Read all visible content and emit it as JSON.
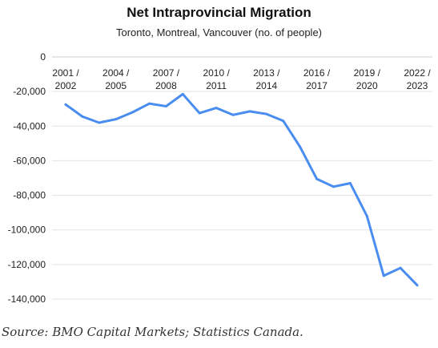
{
  "chart_data": {
    "type": "line",
    "title": "Net Intraprovincial Migration",
    "subtitle": "Toronto, Montreal, Vancouver (no. of people)",
    "xlabel": "",
    "ylabel": "",
    "ylim": [
      -140000,
      0
    ],
    "yticks": [
      "0",
      "-20,000",
      "-40,000",
      "-60,000",
      "-80,000",
      "-100,000",
      "-120,000",
      "-140,000"
    ],
    "x_tick_labels": [
      {
        "line1": "2001 /",
        "line2": "2002",
        "index": 0
      },
      {
        "line1": "2004 /",
        "line2": "2005",
        "index": 3
      },
      {
        "line1": "2007 /",
        "line2": "2008",
        "index": 6
      },
      {
        "line1": "2010 /",
        "line2": "2011",
        "index": 9
      },
      {
        "line1": "2013 /",
        "line2": "2014",
        "index": 12
      },
      {
        "line1": "2016 /",
        "line2": "2017",
        "index": 15
      },
      {
        "line1": "2019 /",
        "line2": "2020",
        "index": 18
      },
      {
        "line1": "2022 /",
        "line2": "2023",
        "index": 21
      }
    ],
    "grid": true,
    "legend": "none",
    "series": [
      {
        "color": "#4a8df0",
        "values": [
          -27500,
          -34500,
          -38000,
          -36000,
          -32000,
          -27000,
          -28500,
          -21500,
          -32500,
          -29500,
          -33500,
          -31500,
          -33000,
          -37000,
          -52000,
          -70500,
          -75000,
          -73000,
          -92000,
          -126500,
          -122000,
          -132000
        ]
      }
    ]
  },
  "source": "Source: BMO Capital Markets; Statistics Canada."
}
